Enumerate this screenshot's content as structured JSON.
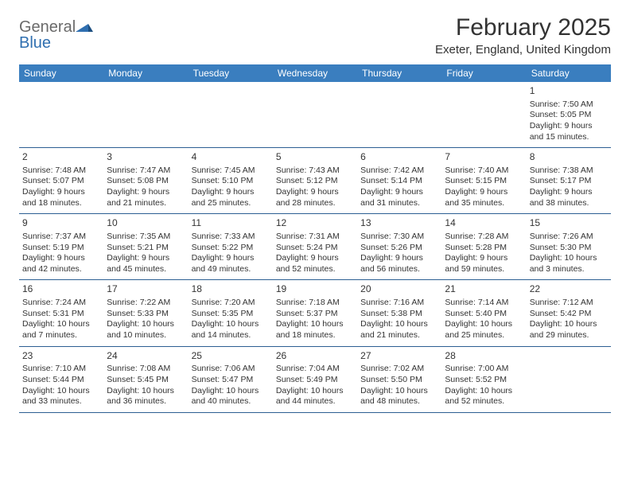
{
  "logo": {
    "general": "General",
    "blue": "Blue"
  },
  "title": "February 2025",
  "location": "Exeter, England, United Kingdom",
  "colors": {
    "header_bg": "#3a7ebf",
    "header_text": "#ffffff",
    "rule": "#2c5f93",
    "text": "#333333",
    "logo_gray": "#6a6a6a",
    "logo_blue": "#2f6fb0"
  },
  "weekdays": [
    "Sunday",
    "Monday",
    "Tuesday",
    "Wednesday",
    "Thursday",
    "Friday",
    "Saturday"
  ],
  "weeks": [
    [
      null,
      null,
      null,
      null,
      null,
      null,
      {
        "n": "1",
        "sunrise": "Sunrise: 7:50 AM",
        "sunset": "Sunset: 5:05 PM",
        "daylight": "Daylight: 9 hours and 15 minutes."
      }
    ],
    [
      {
        "n": "2",
        "sunrise": "Sunrise: 7:48 AM",
        "sunset": "Sunset: 5:07 PM",
        "daylight": "Daylight: 9 hours and 18 minutes."
      },
      {
        "n": "3",
        "sunrise": "Sunrise: 7:47 AM",
        "sunset": "Sunset: 5:08 PM",
        "daylight": "Daylight: 9 hours and 21 minutes."
      },
      {
        "n": "4",
        "sunrise": "Sunrise: 7:45 AM",
        "sunset": "Sunset: 5:10 PM",
        "daylight": "Daylight: 9 hours and 25 minutes."
      },
      {
        "n": "5",
        "sunrise": "Sunrise: 7:43 AM",
        "sunset": "Sunset: 5:12 PM",
        "daylight": "Daylight: 9 hours and 28 minutes."
      },
      {
        "n": "6",
        "sunrise": "Sunrise: 7:42 AM",
        "sunset": "Sunset: 5:14 PM",
        "daylight": "Daylight: 9 hours and 31 minutes."
      },
      {
        "n": "7",
        "sunrise": "Sunrise: 7:40 AM",
        "sunset": "Sunset: 5:15 PM",
        "daylight": "Daylight: 9 hours and 35 minutes."
      },
      {
        "n": "8",
        "sunrise": "Sunrise: 7:38 AM",
        "sunset": "Sunset: 5:17 PM",
        "daylight": "Daylight: 9 hours and 38 minutes."
      }
    ],
    [
      {
        "n": "9",
        "sunrise": "Sunrise: 7:37 AM",
        "sunset": "Sunset: 5:19 PM",
        "daylight": "Daylight: 9 hours and 42 minutes."
      },
      {
        "n": "10",
        "sunrise": "Sunrise: 7:35 AM",
        "sunset": "Sunset: 5:21 PM",
        "daylight": "Daylight: 9 hours and 45 minutes."
      },
      {
        "n": "11",
        "sunrise": "Sunrise: 7:33 AM",
        "sunset": "Sunset: 5:22 PM",
        "daylight": "Daylight: 9 hours and 49 minutes."
      },
      {
        "n": "12",
        "sunrise": "Sunrise: 7:31 AM",
        "sunset": "Sunset: 5:24 PM",
        "daylight": "Daylight: 9 hours and 52 minutes."
      },
      {
        "n": "13",
        "sunrise": "Sunrise: 7:30 AM",
        "sunset": "Sunset: 5:26 PM",
        "daylight": "Daylight: 9 hours and 56 minutes."
      },
      {
        "n": "14",
        "sunrise": "Sunrise: 7:28 AM",
        "sunset": "Sunset: 5:28 PM",
        "daylight": "Daylight: 9 hours and 59 minutes."
      },
      {
        "n": "15",
        "sunrise": "Sunrise: 7:26 AM",
        "sunset": "Sunset: 5:30 PM",
        "daylight": "Daylight: 10 hours and 3 minutes."
      }
    ],
    [
      {
        "n": "16",
        "sunrise": "Sunrise: 7:24 AM",
        "sunset": "Sunset: 5:31 PM",
        "daylight": "Daylight: 10 hours and 7 minutes."
      },
      {
        "n": "17",
        "sunrise": "Sunrise: 7:22 AM",
        "sunset": "Sunset: 5:33 PM",
        "daylight": "Daylight: 10 hours and 10 minutes."
      },
      {
        "n": "18",
        "sunrise": "Sunrise: 7:20 AM",
        "sunset": "Sunset: 5:35 PM",
        "daylight": "Daylight: 10 hours and 14 minutes."
      },
      {
        "n": "19",
        "sunrise": "Sunrise: 7:18 AM",
        "sunset": "Sunset: 5:37 PM",
        "daylight": "Daylight: 10 hours and 18 minutes."
      },
      {
        "n": "20",
        "sunrise": "Sunrise: 7:16 AM",
        "sunset": "Sunset: 5:38 PM",
        "daylight": "Daylight: 10 hours and 21 minutes."
      },
      {
        "n": "21",
        "sunrise": "Sunrise: 7:14 AM",
        "sunset": "Sunset: 5:40 PM",
        "daylight": "Daylight: 10 hours and 25 minutes."
      },
      {
        "n": "22",
        "sunrise": "Sunrise: 7:12 AM",
        "sunset": "Sunset: 5:42 PM",
        "daylight": "Daylight: 10 hours and 29 minutes."
      }
    ],
    [
      {
        "n": "23",
        "sunrise": "Sunrise: 7:10 AM",
        "sunset": "Sunset: 5:44 PM",
        "daylight": "Daylight: 10 hours and 33 minutes."
      },
      {
        "n": "24",
        "sunrise": "Sunrise: 7:08 AM",
        "sunset": "Sunset: 5:45 PM",
        "daylight": "Daylight: 10 hours and 36 minutes."
      },
      {
        "n": "25",
        "sunrise": "Sunrise: 7:06 AM",
        "sunset": "Sunset: 5:47 PM",
        "daylight": "Daylight: 10 hours and 40 minutes."
      },
      {
        "n": "26",
        "sunrise": "Sunrise: 7:04 AM",
        "sunset": "Sunset: 5:49 PM",
        "daylight": "Daylight: 10 hours and 44 minutes."
      },
      {
        "n": "27",
        "sunrise": "Sunrise: 7:02 AM",
        "sunset": "Sunset: 5:50 PM",
        "daylight": "Daylight: 10 hours and 48 minutes."
      },
      {
        "n": "28",
        "sunrise": "Sunrise: 7:00 AM",
        "sunset": "Sunset: 5:52 PM",
        "daylight": "Daylight: 10 hours and 52 minutes."
      },
      null
    ]
  ]
}
